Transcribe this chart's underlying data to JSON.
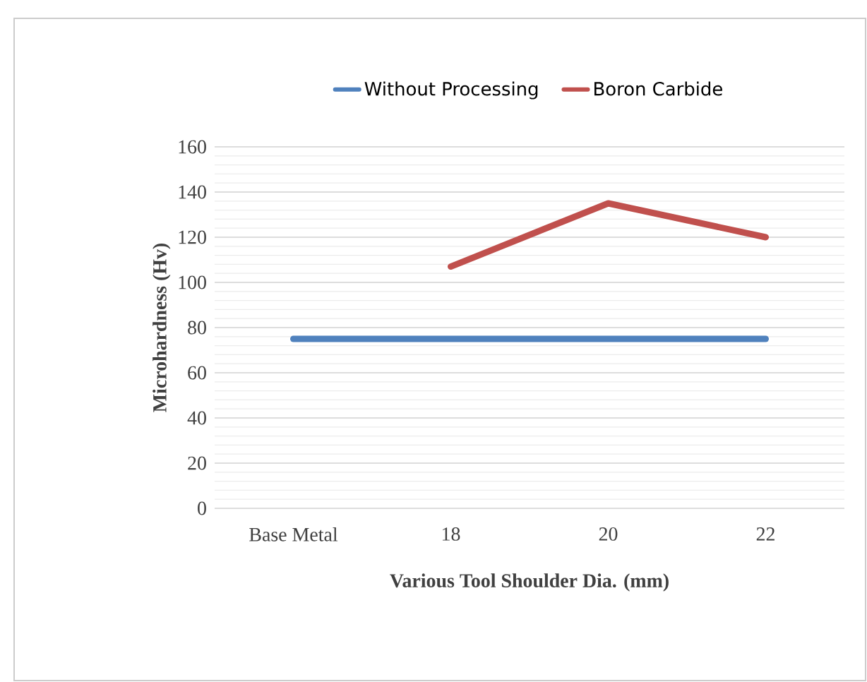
{
  "chart_data": {
    "type": "line",
    "xlabel": "Various Tool Shoulder Dia. (mm)",
    "ylabel": "Microhardness (Hv)",
    "categories": [
      "Base Metal",
      "18",
      "20",
      "22"
    ],
    "series": [
      {
        "name": "Without Processing",
        "color": "#4f81bd",
        "values": [
          75,
          75,
          75,
          75
        ]
      },
      {
        "name": "Boron Carbide",
        "color": "#c0504d",
        "values": [
          null,
          107,
          135,
          120
        ]
      }
    ],
    "ylim": [
      0,
      160
    ],
    "yticks": [
      0,
      20,
      40,
      60,
      80,
      100,
      120,
      140,
      160
    ],
    "grid": "y",
    "legend": "top",
    "marker": "none",
    "line_style": "solid"
  }
}
